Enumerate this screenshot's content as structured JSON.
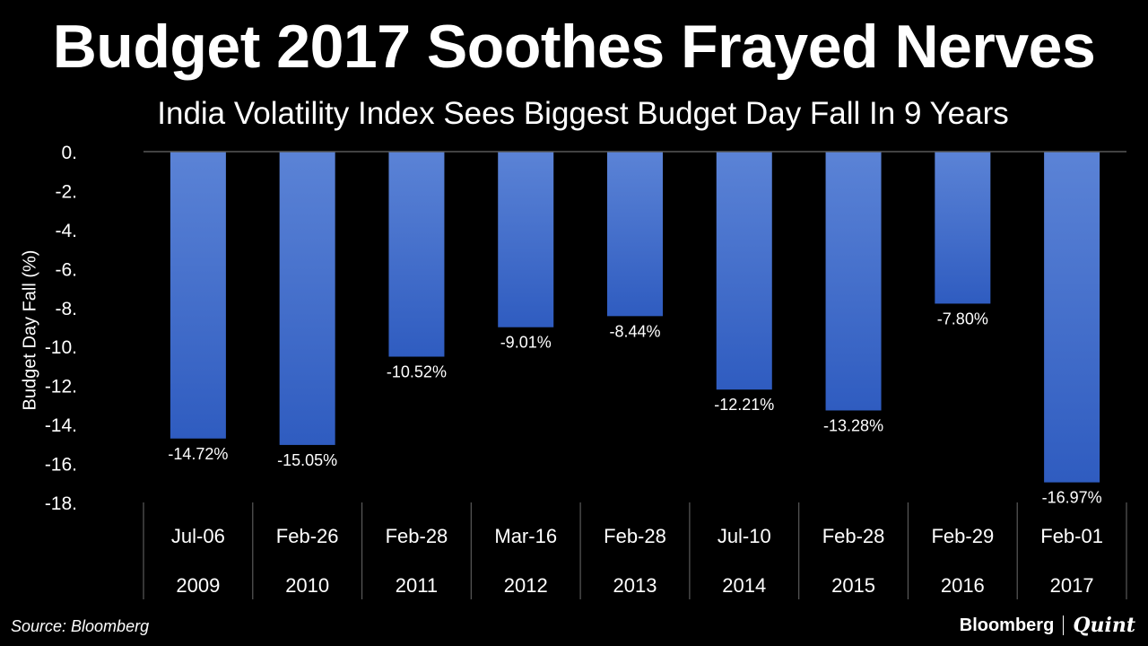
{
  "header": {
    "title": "Budget 2017 Soothes Frayed Nerves",
    "subtitle": "India Volatility Index Sees Biggest Budget Day Fall In 9 Years"
  },
  "footer": {
    "source": "Source: Bloomberg",
    "brand_primary": "Bloomberg",
    "brand_secondary": "Quint"
  },
  "chart_data": {
    "type": "bar",
    "title": "Budget 2017 Soothes Frayed Nerves",
    "subtitle": "India Volatility Index Sees Biggest Budget Day Fall In 9 Years",
    "xlabel": "",
    "ylabel": "Budget Day Fall (%)",
    "ylim": [
      -18,
      0
    ],
    "yticks": [
      "0.",
      "-2.",
      "-4.",
      "-6.",
      "-8.",
      "-10.",
      "-12.",
      "-14.",
      "-16.",
      "-18."
    ],
    "ytick_values": [
      0,
      -2,
      -4,
      -6,
      -8,
      -10,
      -12,
      -14,
      -16,
      -18
    ],
    "categories": [
      "Jul-06",
      "Feb-26",
      "Feb-28",
      "Mar-16",
      "Feb-28",
      "Jul-10",
      "Feb-28",
      "Feb-29",
      "Feb-01"
    ],
    "years": [
      "2009",
      "2010",
      "2011",
      "2012",
      "2013",
      "2014",
      "2015",
      "2016",
      "2017"
    ],
    "values": [
      -14.72,
      -15.05,
      -10.52,
      -9.01,
      -8.44,
      -12.21,
      -13.28,
      -7.8,
      -16.97
    ],
    "data_labels": [
      "-14.72%",
      "-15.05%",
      "-10.52%",
      "-9.01%",
      "-8.44%",
      "-12.21%",
      "-13.28%",
      "-7.80%",
      "-16.97%"
    ],
    "bar_color": "#4a73c9",
    "bar_color_light": "#5b83d6",
    "grid": false
  }
}
